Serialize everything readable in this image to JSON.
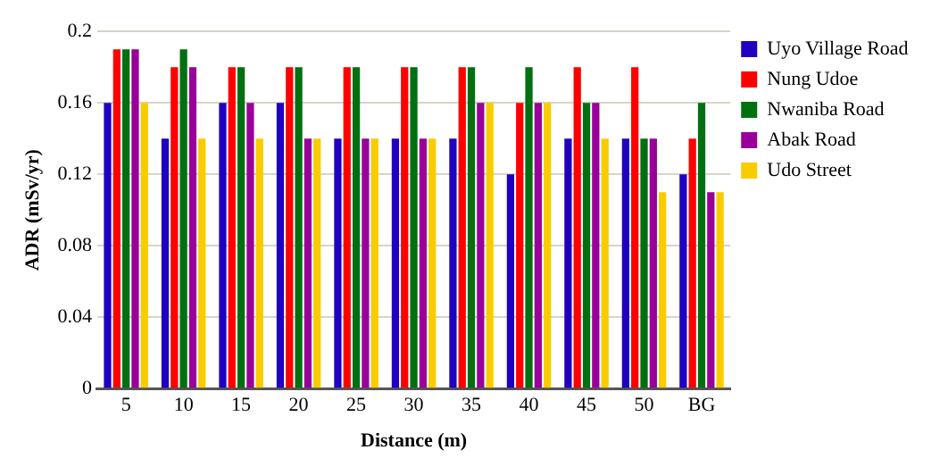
{
  "chart_data": {
    "type": "bar",
    "xlabel": "Distance (m)",
    "ylabel": "ADR (mSv/yr)",
    "categories": [
      "5",
      "10",
      "15",
      "20",
      "25",
      "30",
      "35",
      "40",
      "45",
      "50",
      "BG"
    ],
    "series": [
      {
        "name": "Uyo Village Road",
        "color": "#1f00c0",
        "values": [
          0.16,
          0.14,
          0.16,
          0.16,
          0.14,
          0.14,
          0.14,
          0.12,
          0.14,
          0.14,
          0.12
        ]
      },
      {
        "name": "Nung Udoe",
        "color": "#ff0000",
        "values": [
          0.19,
          0.18,
          0.18,
          0.18,
          0.18,
          0.18,
          0.18,
          0.16,
          0.18,
          0.18,
          0.14
        ]
      },
      {
        "name": "Nwaniba Road",
        "color": "#007010",
        "values": [
          0.19,
          0.19,
          0.18,
          0.18,
          0.18,
          0.18,
          0.18,
          0.18,
          0.16,
          0.14,
          0.16
        ]
      },
      {
        "name": "Abak Road",
        "color": "#990099",
        "values": [
          0.19,
          0.18,
          0.16,
          0.14,
          0.14,
          0.14,
          0.16,
          0.16,
          0.16,
          0.14,
          0.11
        ]
      },
      {
        "name": "Udo Street",
        "color": "#f8cc00",
        "values": [
          0.16,
          0.14,
          0.14,
          0.14,
          0.14,
          0.14,
          0.16,
          0.16,
          0.14,
          0.11,
          0.11
        ]
      }
    ],
    "ylim": [
      0,
      0.2
    ],
    "yticks": [
      0,
      0.04,
      0.08,
      0.12,
      0.16,
      0.2
    ],
    "grid": "y",
    "legend": "top right"
  }
}
